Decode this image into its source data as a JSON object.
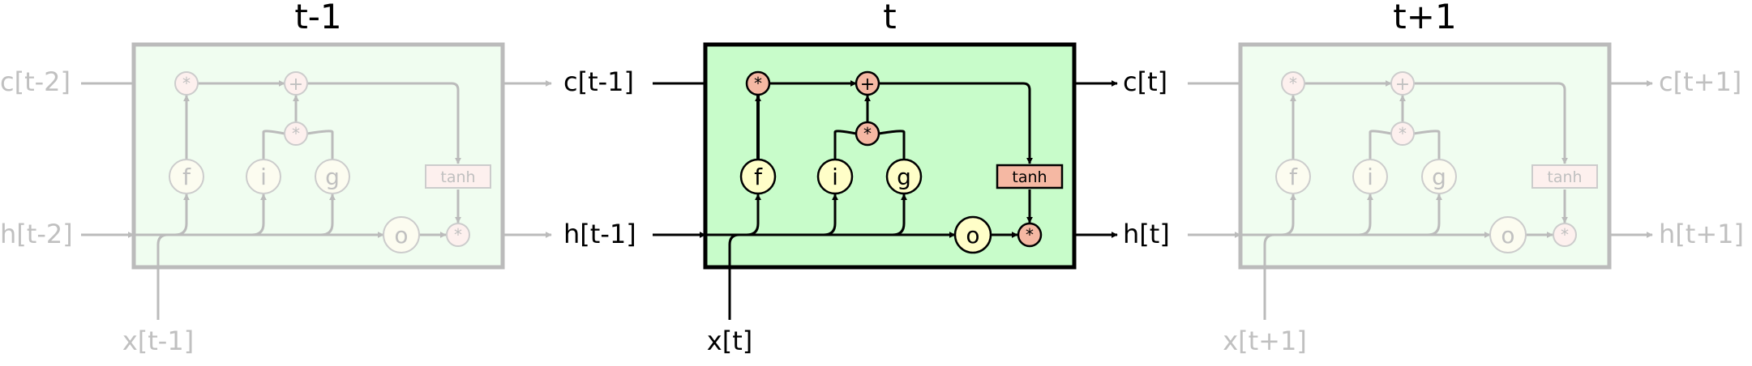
{
  "cells": [
    {
      "title": "t-1",
      "faded": true,
      "c_in": "c[t-2]",
      "h_in": "h[t-2]",
      "c_out": "",
      "h_out": "",
      "x_in": "x[t-1]"
    },
    {
      "title": "t",
      "faded": false,
      "c_in": "c[t-1]",
      "h_in": "h[t-1]",
      "c_out": "c[t]",
      "h_out": "h[t]",
      "x_in": "x[t]"
    },
    {
      "title": "t+1",
      "faded": true,
      "c_in": "",
      "h_in": "",
      "c_out": "c[t+1]",
      "h_out": "h[t+1]",
      "x_in": "x[t+1]"
    }
  ],
  "gate_labels": {
    "forget": "f",
    "input": "i",
    "candidate": "g",
    "output": "o",
    "tanh": "tanh",
    "mul": "*",
    "add": "+"
  },
  "colors": {
    "cell_fill_active": "#c8fcca",
    "cell_fill_faded": "#f0fdf0",
    "gate_fill_active": "#fffec8",
    "op_fill_active": "#f5b8a3",
    "line_active": "#000000",
    "line_faded": "#bbbbbb",
    "text_faded": "#c0c0c0"
  }
}
